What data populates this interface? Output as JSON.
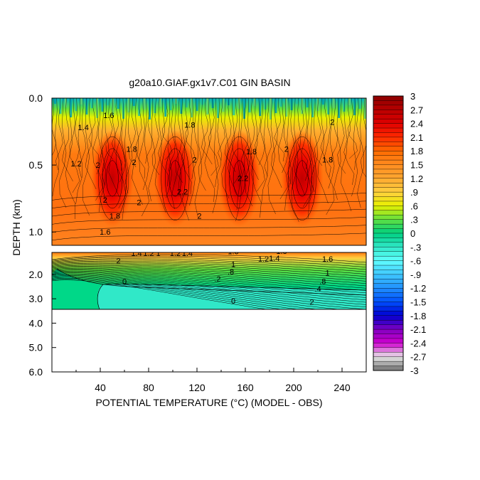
{
  "chart_data": {
    "type": "heatmap",
    "title": "g20a10.GIAF.gx1v7.C01 GIN BASIN",
    "xlabel": "POTENTIAL TEMPERATURE (°C) (MODEL - OBS)",
    "ylabel": "DEPTH (km)",
    "x_ticks": [
      40,
      80,
      120,
      160,
      200,
      240
    ],
    "x_tick_labels": [
      "40",
      "80",
      "120",
      "160",
      "200",
      "240"
    ],
    "xlim": [
      0,
      260
    ],
    "upper_panel": {
      "ylim": [
        0.0,
        1.1
      ],
      "y_ticks": [
        0.0,
        0.5,
        1.0
      ],
      "y_tick_labels": [
        "0.0",
        "0.5",
        "1.0"
      ]
    },
    "lower_panel": {
      "ylim": [
        1.1,
        6.0
      ],
      "y_ticks": [
        2.0,
        3.0,
        4.0,
        5.0,
        6.0
      ],
      "y_tick_labels": [
        "2.0",
        "3.0",
        "4.0",
        "5.0",
        "6.0"
      ],
      "data_bottom_depth": 3.4
    },
    "warm_cores_x": [
      50,
      102,
      155,
      207
    ],
    "upper_contour_labels": [
      {
        "x": 26,
        "y": 0.24,
        "text": "1.4"
      },
      {
        "x": 47,
        "y": 0.15,
        "text": "1.6"
      },
      {
        "x": 20,
        "y": 0.51,
        "text": "1.2"
      },
      {
        "x": 38,
        "y": 0.52,
        "text": "2"
      },
      {
        "x": 66,
        "y": 0.4,
        "text": "1.8"
      },
      {
        "x": 68,
        "y": 0.5,
        "text": "2"
      },
      {
        "x": 114,
        "y": 0.22,
        "text": "1.8"
      },
      {
        "x": 118,
        "y": 0.48,
        "text": "2"
      },
      {
        "x": 108,
        "y": 0.72,
        "text": "2.2"
      },
      {
        "x": 165,
        "y": 0.42,
        "text": "1.8"
      },
      {
        "x": 158,
        "y": 0.62,
        "text": "2.2"
      },
      {
        "x": 194,
        "y": 0.4,
        "text": "2"
      },
      {
        "x": 232,
        "y": 0.2,
        "text": "2"
      },
      {
        "x": 228,
        "y": 0.48,
        "text": "1.8"
      },
      {
        "x": 72,
        "y": 0.8,
        "text": "2"
      },
      {
        "x": 122,
        "y": 0.9,
        "text": "2"
      },
      {
        "x": 44,
        "y": 0.78,
        "text": "2"
      },
      {
        "x": 52,
        "y": 0.9,
        "text": "1.8"
      },
      {
        "x": 44,
        "y": 1.02,
        "text": "1.6"
      }
    ],
    "lower_contour_labels": [
      {
        "x": 70,
        "y": 1.25,
        "text": "1.4"
      },
      {
        "x": 80,
        "y": 1.25,
        "text": "1.2"
      },
      {
        "x": 88,
        "y": 1.25,
        "text": "1"
      },
      {
        "x": 102,
        "y": 1.24,
        "text": "1.2"
      },
      {
        "x": 112,
        "y": 1.24,
        "text": "1.4"
      },
      {
        "x": 150,
        "y": 1.18,
        "text": "1.6"
      },
      {
        "x": 190,
        "y": 1.16,
        "text": "1.8"
      },
      {
        "x": 175,
        "y": 1.48,
        "text": "1.2"
      },
      {
        "x": 184,
        "y": 1.45,
        "text": "1.4"
      },
      {
        "x": 228,
        "y": 1.48,
        "text": "1.6"
      },
      {
        "x": 150,
        "y": 1.7,
        "text": "1"
      },
      {
        "x": 148,
        "y": 2.0,
        "text": ".8"
      },
      {
        "x": 55,
        "y": 1.55,
        "text": "2"
      },
      {
        "x": 137,
        "y": 2.3,
        "text": ".2"
      },
      {
        "x": 228,
        "y": 2.05,
        "text": "1"
      },
      {
        "x": 224,
        "y": 2.4,
        "text": ".8"
      },
      {
        "x": 220,
        "y": 2.7,
        "text": ".4"
      },
      {
        "x": 60,
        "y": 2.4,
        "text": "0"
      },
      {
        "x": 150,
        "y": 3.2,
        "text": "0"
      },
      {
        "x": 215,
        "y": 3.25,
        "text": "2"
      }
    ],
    "colorbar": {
      "min": -3,
      "max": 3,
      "step": 0.1,
      "tick_labels": [
        "3",
        "2.7",
        "2.4",
        "2.1",
        "1.8",
        "1.5",
        "1.2",
        ".9",
        ".6",
        ".3",
        "0",
        "-.3",
        "-.6",
        "-.9",
        "-1.2",
        "-1.5",
        "-1.8",
        "-2.1",
        "-2.4",
        "-2.7",
        "-3"
      ],
      "colors": {
        "3": "#8a0000",
        "2.7": "#b80000",
        "2.4": "#e00000",
        "2.1": "#ff2a00",
        "1.8": "#ff6a00",
        "1.5": "#ff8c20",
        "1.2": "#ffa830",
        "0.9": "#ffcf40",
        "0.6": "#e8f000",
        "0.3": "#60e040",
        "0": "#00d080",
        "-0.3": "#30e8c8",
        "-0.6": "#60ffff",
        "-0.9": "#40c8ff",
        "-1.2": "#2090ff",
        "-1.5": "#0050ff",
        "-1.8": "#0000d0",
        "-2.1": "#8000c0",
        "-2.4": "#d000d0",
        "-2.7": "#e8e8e8",
        "-3": "#707070"
      }
    }
  }
}
